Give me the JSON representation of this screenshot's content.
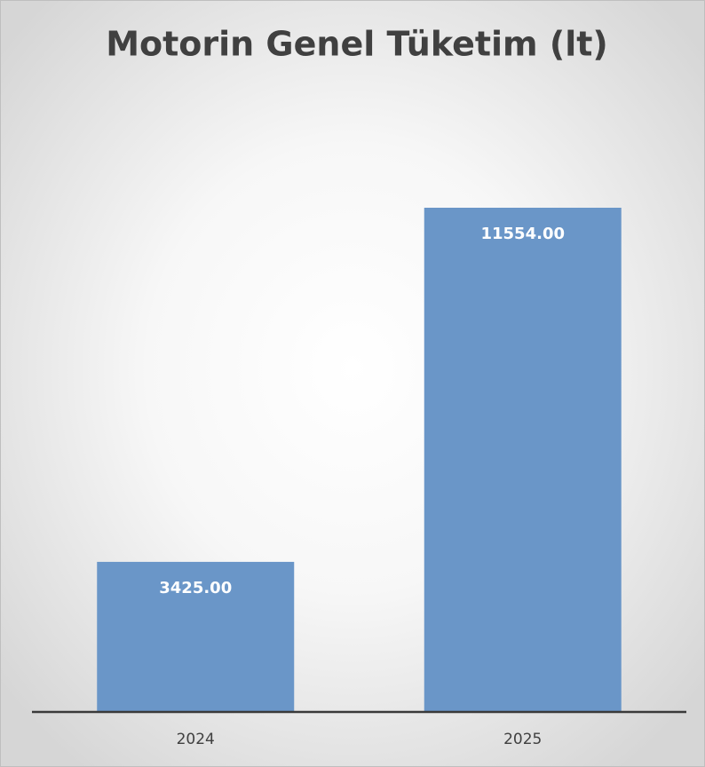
{
  "chart_data": {
    "type": "bar",
    "title": "Motorin Genel Tüketim (lt)",
    "categories": [
      "2024",
      "2025"
    ],
    "values": [
      3425,
      11554
    ],
    "value_labels": [
      "3425.00",
      "11554.00"
    ],
    "color": "#6a96c8"
  }
}
